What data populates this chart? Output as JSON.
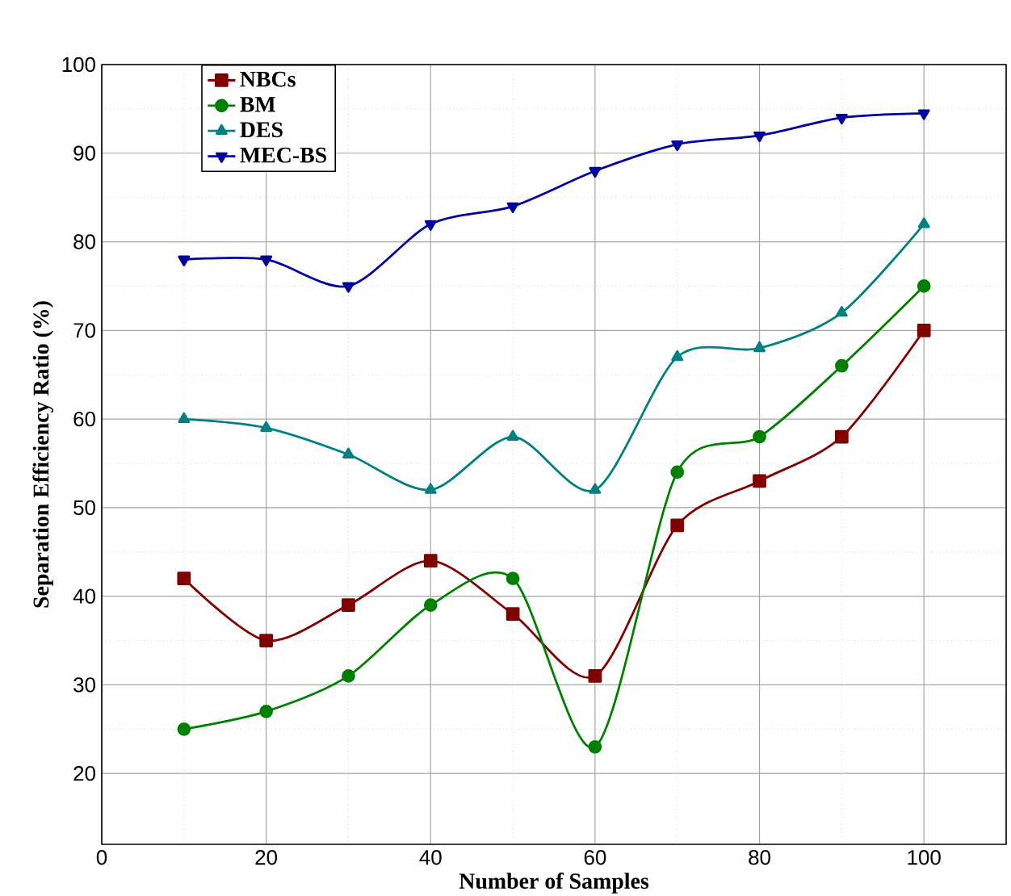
{
  "chart_data": {
    "type": "line",
    "xlabel": "Number of Samples",
    "ylabel": "Separation Efficiency Ratio (%)",
    "x": [
      10,
      20,
      30,
      40,
      50,
      60,
      70,
      80,
      90,
      100
    ],
    "series": [
      {
        "name": "NBCs",
        "color": "#800000",
        "marker": "square",
        "values": [
          42,
          35,
          39,
          44,
          38,
          31,
          48,
          53,
          58,
          70
        ]
      },
      {
        "name": "BM",
        "color": "#008000",
        "marker": "circle",
        "values": [
          25,
          27,
          31,
          39,
          42,
          23,
          54,
          58,
          66,
          75
        ]
      },
      {
        "name": "DES",
        "color": "#008080",
        "marker": "triangle",
        "values": [
          60,
          59,
          56,
          52,
          58,
          52,
          67,
          68,
          72,
          82
        ]
      },
      {
        "name": "MEC-BS",
        "color": "#0000a0",
        "marker": "triangle-down",
        "values": [
          78,
          78,
          75,
          82,
          84,
          88,
          91,
          92,
          94,
          94.5
        ]
      }
    ],
    "xlim": [
      0,
      110
    ],
    "ylim": [
      12,
      100
    ],
    "xticks": [
      0,
      20,
      40,
      60,
      80,
      100
    ],
    "yticks": [
      20,
      30,
      40,
      50,
      60,
      70,
      80,
      90,
      100
    ],
    "grid": true,
    "legend": "top left",
    "line_style": "solid"
  }
}
